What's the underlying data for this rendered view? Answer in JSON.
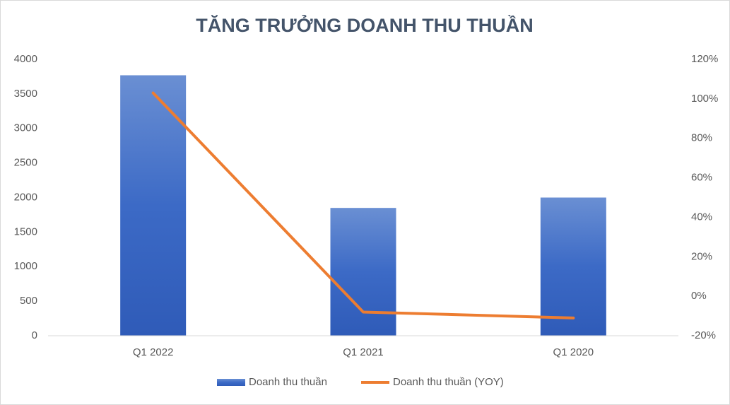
{
  "chart_data": {
    "type": "combo",
    "title": "TĂNG TRƯỞNG DOANH THU THUẦN",
    "categories": [
      "Q1 2022",
      "Q1 2021",
      "Q1 2020"
    ],
    "series": [
      {
        "name": "Doanh thu thuần",
        "type": "bar",
        "color": "#4472c4",
        "values": [
          3770,
          1850,
          2000
        ]
      },
      {
        "name": "Doanh thu thuần (YOY)",
        "type": "line",
        "color": "#ed7d31",
        "axis": "y2",
        "values": [
          103,
          -8,
          -11
        ]
      }
    ],
    "ylim": [
      0,
      4000
    ],
    "yticks": [
      0,
      500,
      1000,
      1500,
      2000,
      2500,
      3000,
      3500,
      4000
    ],
    "y2lim": [
      -20,
      120
    ],
    "y2ticks": [
      {
        "value": -20,
        "label": "-20%"
      },
      {
        "value": 0,
        "label": "0%"
      },
      {
        "value": 20,
        "label": "20%"
      },
      {
        "value": 40,
        "label": "40%"
      },
      {
        "value": 60,
        "label": "60%"
      },
      {
        "value": 80,
        "label": "80%"
      },
      {
        "value": 100,
        "label": "100%"
      },
      {
        "value": 120,
        "label": "120%"
      }
    ],
    "grid": false,
    "legend": "bottom"
  }
}
